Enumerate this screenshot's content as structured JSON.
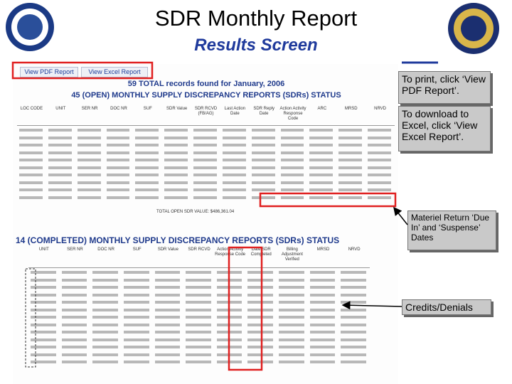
{
  "header": {
    "title": "SDR Monthly Report",
    "subtitle": "Results Screen"
  },
  "buttons": [
    "View PDF Report",
    "View Excel Report"
  ],
  "open_section": {
    "summary": "59 TOTAL records found for January, 2006",
    "heading": "45 (OPEN) MONTHLY SUPPLY DISCREPANCY REPORTS (SDRs) STATUS",
    "columns": [
      "LOC CODE",
      "UNIT",
      "SER NR",
      "DOC NR",
      "SUF",
      "SDR Value",
      "SDR RCVD (FB/AG)",
      "Last Action Date",
      "SDR Reply Date",
      "Action Activity Response Code",
      "ARC",
      "MRSD",
      "NRVD"
    ],
    "total": "TOTAL OPEN SDR VALUE: $486,361.04"
  },
  "completed_section": {
    "heading": "14 (COMPLETED) MONTHLY SUPPLY DISCREPANCY REPORTS (SDRs) STATUS",
    "columns": [
      "UNIT",
      "SER NR",
      "DOC NR",
      "SUF",
      "SDR Value",
      "SDR RCVD",
      "Action Activity Response Code",
      "Date SDR Completed",
      "Billing Adjustment Verified",
      "MRSD",
      "NRVD"
    ]
  },
  "callouts": [
    "To print, click ‘View PDF Report’.",
    "To download to Excel, click ‘View Excel Report’.",
    "Materiel Return ‘Due In’ and ‘Suspense’ Dates",
    "Credits/Denials"
  ]
}
